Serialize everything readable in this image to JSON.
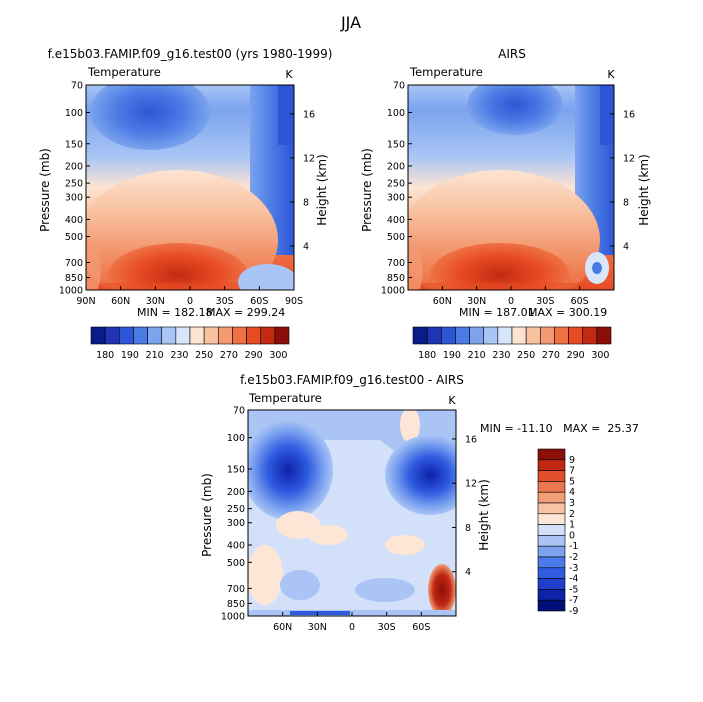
{
  "season": "JJA",
  "units": "K",
  "panels": {
    "model": {
      "title": "f.e15b03.FAMIP.f09_g16.test00 (yrs 1980-1999)",
      "variable": "Temperature",
      "min_label": "MIN = 182.18",
      "max_label": "MAX = 299.24"
    },
    "obs": {
      "title": "AIRS",
      "variable": "Temperature",
      "min_label": "MIN = 187.01",
      "max_label": "MAX = 300.19"
    },
    "diff": {
      "title": "f.e15b03.FAMIP.f09_g16.test00 - AIRS",
      "variable": "Temperature",
      "minmax_label": "MIN = -11.10   MAX =  25.37"
    }
  },
  "colors": {
    "abs_scale": [
      "#081d8a",
      "#1e34b4",
      "#2d56d6",
      "#4a7be4",
      "#7ba3ee",
      "#a9c5f5",
      "#d7e6fb",
      "#fde4d2",
      "#f8c1a0",
      "#f39a72",
      "#ee7246",
      "#e84c24",
      "#c42a12",
      "#8a0f08"
    ],
    "diff_scale": [
      "#000e78",
      "#0c22a8",
      "#1f40cc",
      "#2f5be0",
      "#4b7be8",
      "#7da3f0",
      "#a9c4f5",
      "#d2e0fa",
      "#fde6d6",
      "#f7c3a4",
      "#f29e78",
      "#ec774e",
      "#e24f2c",
      "#bf2812",
      "#8a0f08"
    ]
  },
  "chart_data": [
    {
      "type": "heatmap",
      "name": "model-temperature",
      "title": "f.e15b03.FAMIP.f09_g16.test00 (yrs 1980-1999)",
      "xlabel": "",
      "ylabel": "Pressure (mb)",
      "y2label": "Height (km)",
      "x_ticks": [
        "90N",
        "60N",
        "30N",
        "0",
        "30S",
        "60S",
        "90S"
      ],
      "x_range": [
        90,
        -90
      ],
      "y_ticks": [
        "70",
        "100",
        "150",
        "200",
        "250",
        "300",
        "400",
        "500",
        "700",
        "850",
        "1000"
      ],
      "y2_ticks": [
        "16",
        "12",
        "8",
        "4"
      ],
      "ylim": [
        70,
        1000
      ],
      "colorbar_labels": [
        "180",
        "190",
        "210",
        "230",
        "250",
        "270",
        "290",
        "300"
      ],
      "min": 182.18,
      "max": 299.24
    },
    {
      "type": "heatmap",
      "name": "airs-temperature",
      "title": "AIRS",
      "xlabel": "",
      "ylabel": "Pressure (mb)",
      "y2label": "Height (km)",
      "x_ticks": [
        "60N",
        "30N",
        "0",
        "30S",
        "60S"
      ],
      "x_range": [
        90,
        -90
      ],
      "y_ticks": [
        "70",
        "100",
        "150",
        "200",
        "250",
        "300",
        "400",
        "500",
        "700",
        "850",
        "1000"
      ],
      "y2_ticks": [
        "16",
        "12",
        "8",
        "4"
      ],
      "ylim": [
        70,
        1000
      ],
      "colorbar_labels": [
        "180",
        "190",
        "210",
        "230",
        "250",
        "270",
        "290",
        "300"
      ],
      "min": 187.01,
      "max": 300.19
    },
    {
      "type": "heatmap",
      "name": "difference-temperature",
      "title": "f.e15b03.FAMIP.f09_g16.test00 - AIRS",
      "xlabel": "",
      "ylabel": "Pressure (mb)",
      "y2label": "Height (km)",
      "x_ticks": [
        "60N",
        "30N",
        "0",
        "30S",
        "60S"
      ],
      "x_range": [
        90,
        -90
      ],
      "y_ticks": [
        "70",
        "100",
        "150",
        "200",
        "250",
        "300",
        "400",
        "500",
        "700",
        "850",
        "1000"
      ],
      "y2_ticks": [
        "16",
        "12",
        "8",
        "4"
      ],
      "ylim": [
        70,
        1000
      ],
      "colorbar_labels": [
        "9",
        "7",
        "5",
        "4",
        "3",
        "2",
        "1",
        "0",
        "-1",
        "-2",
        "-3",
        "-4",
        "-5",
        "-7",
        "-9"
      ],
      "min": -11.1,
      "max": 25.37
    }
  ]
}
